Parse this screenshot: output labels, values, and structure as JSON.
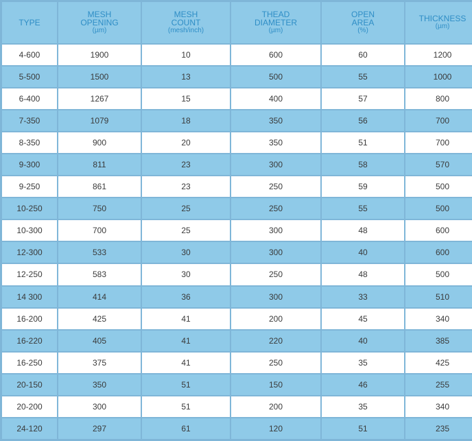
{
  "headers": [
    {
      "lines": [
        "TYPE"
      ],
      "unit": ""
    },
    {
      "lines": [
        "MESH",
        "OPENING"
      ],
      "unit": "(µm)"
    },
    {
      "lines": [
        "MESH",
        "COUNT"
      ],
      "unit": "(mesh/inch)"
    },
    {
      "lines": [
        "THEAD",
        "DIAMETER"
      ],
      "unit": "(µm)"
    },
    {
      "lines": [
        "OPEN",
        "AREA"
      ],
      "unit": "(%)"
    },
    {
      "lines": [
        "THICKNESS"
      ],
      "unit": "(µm)"
    }
  ],
  "rows": [
    [
      "4-600",
      "1900",
      "10",
      "600",
      "60",
      "1200"
    ],
    [
      "5-500",
      "1500",
      "13",
      "500",
      "55",
      "1000"
    ],
    [
      "6-400",
      "1267",
      "15",
      "400",
      "57",
      "800"
    ],
    [
      "7-350",
      "1079",
      "18",
      "350",
      "56",
      "700"
    ],
    [
      "8-350",
      "900",
      "20",
      "350",
      "51",
      "700"
    ],
    [
      "9-300",
      "811",
      "23",
      "300",
      "58",
      "570"
    ],
    [
      "9-250",
      "861",
      "23",
      "250",
      "59",
      "500"
    ],
    [
      "10-250",
      "750",
      "25",
      "250",
      "55",
      "500"
    ],
    [
      "10-300",
      "700",
      "25",
      "300",
      "48",
      "600"
    ],
    [
      "12-300",
      "533",
      "30",
      "300",
      "40",
      "600"
    ],
    [
      "12-250",
      "583",
      "30",
      "250",
      "48",
      "500"
    ],
    [
      "14 300",
      "414",
      "36",
      "300",
      "33",
      "510"
    ],
    [
      "16-200",
      "425",
      "41",
      "200",
      "45",
      "340"
    ],
    [
      "16-220",
      "405",
      "41",
      "220",
      "40",
      "385"
    ],
    [
      "16-250",
      "375",
      "41",
      "250",
      "35",
      "425"
    ],
    [
      "20-150",
      "350",
      "51",
      "150",
      "46",
      "255"
    ],
    [
      "20-200",
      "300",
      "51",
      "200",
      "35",
      "340"
    ],
    [
      "24-120",
      "297",
      "61",
      "120",
      "51",
      "235"
    ]
  ],
  "colors": {
    "header_bg": "#8fcae8",
    "header_text": "#2f8ec6",
    "stripe": "#8fcae8",
    "grid": "#7fb6d8",
    "text": "#3a3a3a"
  }
}
